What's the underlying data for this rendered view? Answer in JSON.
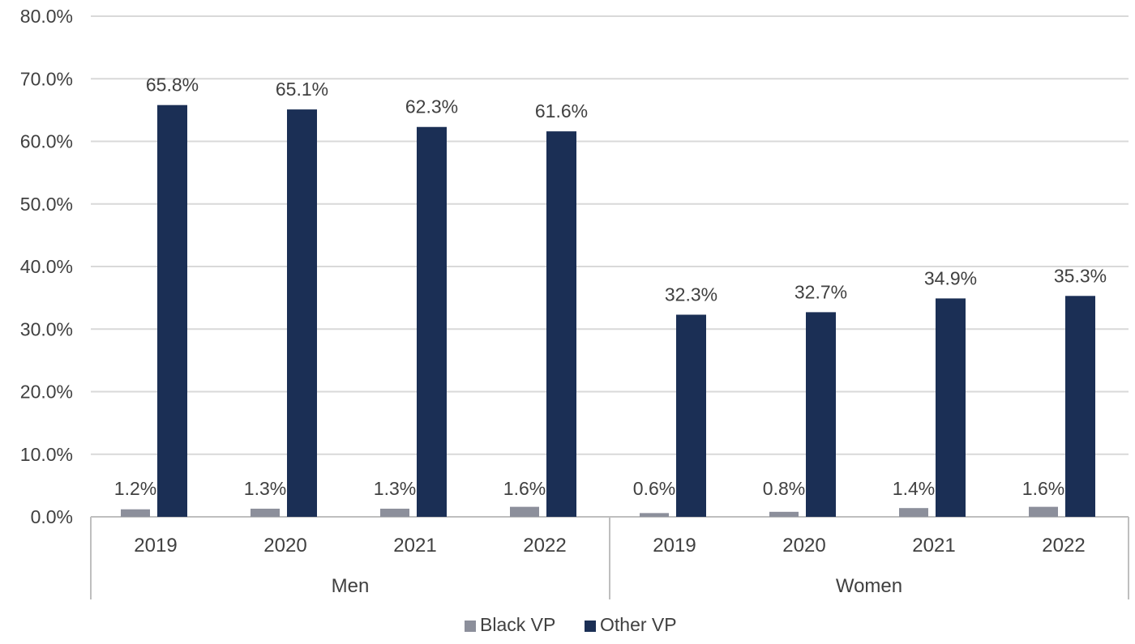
{
  "chart_data": {
    "type": "bar",
    "groups": [
      {
        "label": "Men",
        "categories": [
          "2019",
          "2020",
          "2021",
          "2022"
        ]
      },
      {
        "label": "Women",
        "categories": [
          "2019",
          "2020",
          "2021",
          "2022"
        ]
      }
    ],
    "series": [
      {
        "name": "Black VP",
        "color": "#8c8f9b",
        "values": [
          1.2,
          1.3,
          1.3,
          1.6,
          0.6,
          0.8,
          1.4,
          1.6
        ],
        "labels": [
          "1.2%",
          "1.3%",
          "1.3%",
          "1.6%",
          "0.6%",
          "0.8%",
          "1.4%",
          "1.6%"
        ]
      },
      {
        "name": "Other VP",
        "color": "#1b2f55",
        "values": [
          65.8,
          65.1,
          62.3,
          61.6,
          32.3,
          32.7,
          34.9,
          35.3
        ],
        "labels": [
          "65.8%",
          "65.1%",
          "62.3%",
          "61.6%",
          "32.3%",
          "32.7%",
          "34.9%",
          "35.3%"
        ]
      }
    ],
    "y_ticks": [
      "0.0%",
      "10.0%",
      "20.0%",
      "30.0%",
      "40.0%",
      "50.0%",
      "60.0%",
      "70.0%",
      "80.0%"
    ],
    "ylim": [
      0,
      80
    ],
    "grid": true,
    "legend_position": "bottom",
    "title": "",
    "xlabel": "",
    "ylabel": ""
  },
  "colors": {
    "grid": "#d9d9d9",
    "axis": "#bfbfbf",
    "text": "#404040"
  }
}
